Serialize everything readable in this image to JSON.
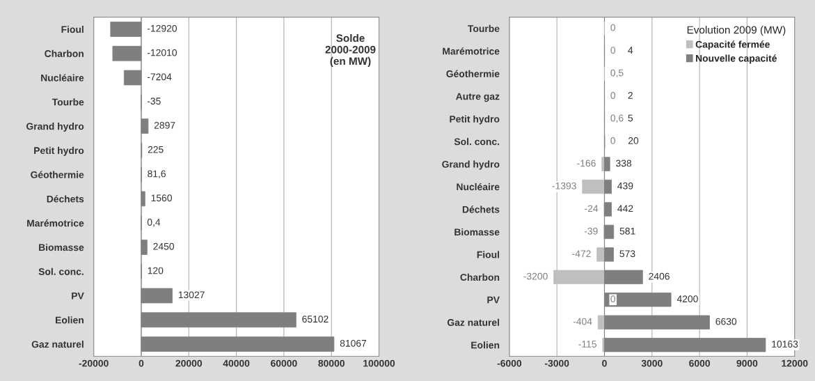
{
  "chart_data": [
    {
      "type": "bar",
      "orientation": "horizontal",
      "title": "Solde\n2000-2009\n(en MW)",
      "categories": [
        "Fioul",
        "Charbon",
        "Nucléaire",
        "Tourbe",
        "Grand hydro",
        "Petit hydro",
        "Géothermie",
        "Déchets",
        "Marémotrice",
        "Biomasse",
        "Sol. conc.",
        "PV",
        "Eolien",
        "Gaz naturel"
      ],
      "series": [
        {
          "color": "#7f7f7f",
          "values": [
            -12920,
            -12010,
            -7204,
            -35,
            2897,
            225,
            81.6,
            1560,
            0.4,
            2450,
            120,
            13027,
            65102,
            81067
          ],
          "value_labels": [
            "-12920",
            "-12010",
            "-7204",
            "-35",
            "2897",
            "225",
            "81,6",
            "1560",
            "0,4",
            "2450",
            "120",
            "13027",
            "65102",
            "81067"
          ]
        }
      ],
      "xlim": [
        -20000,
        100000
      ],
      "xticks": [
        -20000,
        0,
        20000,
        40000,
        60000,
        80000,
        100000
      ],
      "grid": "x",
      "legend": false
    },
    {
      "type": "bar",
      "orientation": "horizontal",
      "legend_title": "Evolution 2009 (MW)",
      "categories": [
        "Tourbe",
        "Marémotrice",
        "Géothermie",
        "Autre gaz",
        "Petit hydro",
        "Sol. conc.",
        "Grand hydro",
        "Nucléaire",
        "Déchets",
        "Biomasse",
        "Fioul",
        "Charbon",
        "PV",
        "Gaz naturel",
        "Eolien"
      ],
      "series": [
        {
          "name": "Capacité fermée",
          "color": "#bfbfbf",
          "values": [
            0,
            0,
            0.5,
            0,
            0.6,
            0,
            -166,
            -1393,
            -24,
            -39,
            -472,
            -3200,
            0,
            -404,
            -115
          ],
          "value_labels": [
            "0",
            "0",
            "0,5",
            "0",
            "0,6",
            "0",
            "-166",
            "-1393",
            "-24",
            "-39",
            "-472",
            "-3200",
            "0",
            "-404",
            "-115"
          ]
        },
        {
          "name": "Nouvelle capacité",
          "color": "#7f7f7f",
          "values": [
            null,
            4,
            null,
            2,
            5,
            20,
            338,
            439,
            442,
            581,
            573,
            2406,
            4200,
            6630,
            10163
          ],
          "value_labels": [
            null,
            "4",
            null,
            "2",
            "5",
            "20",
            "338",
            "439",
            "442",
            "581",
            "573",
            "2406",
            "4200",
            "6630",
            "10163"
          ]
        }
      ],
      "xlim": [
        -6000,
        12000
      ],
      "xticks": [
        -6000,
        -3000,
        0,
        3000,
        6000,
        9000,
        12000
      ],
      "grid": "x",
      "legend": "top right"
    }
  ]
}
